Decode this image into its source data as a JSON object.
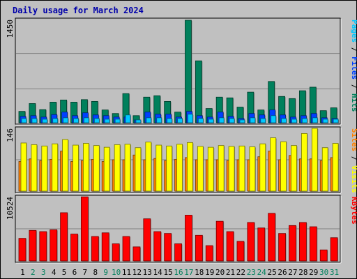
{
  "title": "Daily usage for March 2024",
  "colors": {
    "hits": "#00805c",
    "files": "#0040ff",
    "pages": "#00c8ff",
    "visits": "#ff8000",
    "sites": "#ffff00",
    "kbytes": "#ff0000",
    "weekend_label": "#00805c",
    "weekday_label": "#000000"
  },
  "chart_data": [
    {
      "type": "bar",
      "name": "hits-files-pages",
      "ymax_label": "1450",
      "ylim": [
        0,
        1450
      ],
      "axis_legend": [
        {
          "text": "Pages",
          "color": "#00c8ff"
        },
        {
          "text": " / ",
          "color": "#000000"
        },
        {
          "text": "Files",
          "color": "#0040ff"
        },
        {
          "text": " / ",
          "color": "#000000"
        },
        {
          "text": "Hits",
          "color": "#00805c"
        }
      ],
      "categories": [
        "1",
        "2",
        "3",
        "4",
        "5",
        "6",
        "7",
        "8",
        "9",
        "10",
        "11",
        "12",
        "13",
        "14",
        "15",
        "16",
        "17",
        "18",
        "19",
        "20",
        "21",
        "22",
        "23",
        "24",
        "25",
        "26",
        "27",
        "28",
        "29",
        "30",
        "31"
      ],
      "series": [
        {
          "name": "Hits",
          "values": [
            160,
            270,
            185,
            290,
            320,
            290,
            325,
            300,
            180,
            130,
            410,
            100,
            360,
            380,
            300,
            150,
            1440,
            870,
            200,
            360,
            350,
            220,
            430,
            180,
            580,
            370,
            340,
            450,
            500,
            170,
            210
          ]
        },
        {
          "name": "Files",
          "values": [
            90,
            100,
            80,
            115,
            150,
            100,
            140,
            110,
            100,
            80,
            80,
            40,
            150,
            120,
            120,
            80,
            160,
            100,
            80,
            150,
            90,
            60,
            130,
            110,
            180,
            110,
            80,
            100,
            130,
            70,
            60
          ]
        },
        {
          "name": "Pages",
          "values": [
            60,
            60,
            50,
            60,
            70,
            60,
            70,
            60,
            50,
            50,
            110,
            40,
            70,
            70,
            60,
            60,
            120,
            60,
            50,
            70,
            60,
            40,
            70,
            60,
            100,
            60,
            50,
            60,
            70,
            50,
            50
          ]
        }
      ]
    },
    {
      "type": "bar",
      "name": "visits-sites",
      "ymax_label": "146",
      "ylim": [
        0,
        146
      ],
      "axis_legend": [
        {
          "text": "Sites",
          "color": "#ff8000"
        },
        {
          "text": " / ",
          "color": "#000000"
        },
        {
          "text": "Visits",
          "color": "#ffff00"
        }
      ],
      "categories": [
        "1",
        "2",
        "3",
        "4",
        "5",
        "6",
        "7",
        "8",
        "9",
        "10",
        "11",
        "12",
        "13",
        "14",
        "15",
        "16",
        "17",
        "18",
        "19",
        "20",
        "21",
        "22",
        "23",
        "24",
        "25",
        "26",
        "27",
        "28",
        "29",
        "30",
        "31"
      ],
      "series": [
        {
          "name": "Visits",
          "values": [
            69,
            75,
            71,
            74,
            93,
            69,
            71,
            74,
            69,
            73,
            73,
            84,
            73,
            76,
            71,
            74,
            78,
            73,
            73,
            73,
            71,
            73,
            73,
            80,
            93,
            73,
            83,
            75,
            75,
            71,
            78
          ]
        },
        {
          "name": "Sites",
          "values": [
            112,
            108,
            105,
            110,
            120,
            107,
            111,
            106,
            102,
            108,
            109,
            101,
            114,
            107,
            105,
            109,
            113,
            104,
            102,
            106,
            104,
            105,
            103,
            110,
            124,
            115,
            106,
            134,
            146,
            101,
            111
          ]
        }
      ]
    },
    {
      "type": "bar",
      "name": "kbytes",
      "ymax_label": "10524",
      "ylim": [
        0,
        10524
      ],
      "axis_legend": [
        {
          "text": "KBytes",
          "color": "#ff0000"
        }
      ],
      "categories": [
        "1",
        "2",
        "3",
        "4",
        "5",
        "6",
        "7",
        "8",
        "9",
        "10",
        "11",
        "12",
        "13",
        "14",
        "15",
        "16",
        "17",
        "18",
        "19",
        "20",
        "21",
        "22",
        "23",
        "24",
        "25",
        "26",
        "27",
        "28",
        "29",
        "30",
        "31"
      ],
      "series": [
        {
          "name": "KBytes",
          "values": [
            3700,
            5000,
            4800,
            5100,
            7900,
            4400,
            10500,
            4000,
            4600,
            2800,
            4000,
            2300,
            6900,
            4800,
            4500,
            2800,
            7500,
            4200,
            2500,
            6500,
            4800,
            3200,
            6300,
            5400,
            7800,
            4500,
            5800,
            6300,
            5600,
            1800,
            3800
          ]
        }
      ]
    }
  ],
  "x_labels": [
    {
      "text": "1",
      "weekend": false
    },
    {
      "text": "2",
      "weekend": true
    },
    {
      "text": "3",
      "weekend": true
    },
    {
      "text": "4",
      "weekend": false
    },
    {
      "text": "5",
      "weekend": false
    },
    {
      "text": "6",
      "weekend": false
    },
    {
      "text": "7",
      "weekend": false
    },
    {
      "text": "8",
      "weekend": false
    },
    {
      "text": "9",
      "weekend": true
    },
    {
      "text": "10",
      "weekend": true
    },
    {
      "text": "11",
      "weekend": false
    },
    {
      "text": "12",
      "weekend": false
    },
    {
      "text": "13",
      "weekend": false
    },
    {
      "text": "14",
      "weekend": false
    },
    {
      "text": "15",
      "weekend": false
    },
    {
      "text": "16",
      "weekend": true
    },
    {
      "text": "17",
      "weekend": true
    },
    {
      "text": "18",
      "weekend": false
    },
    {
      "text": "19",
      "weekend": false
    },
    {
      "text": "20",
      "weekend": false
    },
    {
      "text": "21",
      "weekend": false
    },
    {
      "text": "22",
      "weekend": false
    },
    {
      "text": "23",
      "weekend": true
    },
    {
      "text": "24",
      "weekend": true
    },
    {
      "text": "25",
      "weekend": false
    },
    {
      "text": "26",
      "weekend": false
    },
    {
      "text": "27",
      "weekend": false
    },
    {
      "text": "28",
      "weekend": false
    },
    {
      "text": "29",
      "weekend": false
    },
    {
      "text": "30",
      "weekend": true
    },
    {
      "text": "31",
      "weekend": true
    }
  ]
}
